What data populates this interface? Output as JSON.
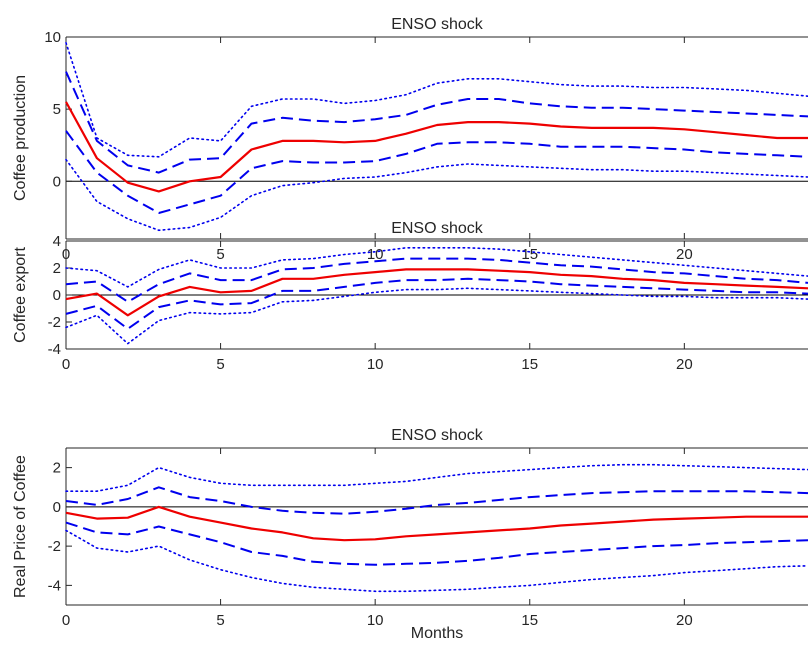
{
  "chart_data": [
    {
      "type": "line",
      "title": "ENSO shock",
      "ylabel": "Coffee production",
      "xlabel": "",
      "xlim": [
        0,
        24
      ],
      "ylim": [
        -4,
        10
      ],
      "xticks": [
        0,
        5,
        10,
        15,
        20
      ],
      "yticks": [
        0,
        5,
        10
      ],
      "grid": false,
      "zero_line": true,
      "x": [
        0,
        1,
        2,
        3,
        4,
        5,
        6,
        7,
        8,
        9,
        10,
        11,
        12,
        13,
        14,
        15,
        16,
        17,
        18,
        19,
        20,
        21,
        22,
        23,
        24
      ],
      "series": [
        {
          "role": "upper-90",
          "style": "dotted",
          "color": "#0000ee",
          "values": [
            9.6,
            3.0,
            1.8,
            1.7,
            3.0,
            2.8,
            5.2,
            5.7,
            5.7,
            5.4,
            5.6,
            6.0,
            6.8,
            7.1,
            7.1,
            6.9,
            6.7,
            6.6,
            6.6,
            6.5,
            6.5,
            6.4,
            6.3,
            6.1,
            5.9
          ]
        },
        {
          "role": "upper-68",
          "style": "dashed",
          "color": "#0000ee",
          "values": [
            7.6,
            2.8,
            1.1,
            0.6,
            1.5,
            1.6,
            4.0,
            4.4,
            4.2,
            4.1,
            4.3,
            4.6,
            5.3,
            5.7,
            5.7,
            5.4,
            5.2,
            5.1,
            5.1,
            5.0,
            4.9,
            4.8,
            4.7,
            4.6,
            4.5
          ]
        },
        {
          "role": "point-estimate",
          "style": "solid",
          "color": "#ee0000",
          "values": [
            5.5,
            1.6,
            -0.1,
            -0.7,
            0.0,
            0.3,
            2.2,
            2.8,
            2.8,
            2.7,
            2.8,
            3.3,
            3.9,
            4.1,
            4.1,
            4.0,
            3.8,
            3.7,
            3.7,
            3.7,
            3.6,
            3.4,
            3.2,
            3.0,
            3.0
          ]
        },
        {
          "role": "lower-68",
          "style": "dashed",
          "color": "#0000ee",
          "values": [
            3.5,
            0.6,
            -1.0,
            -2.2,
            -1.6,
            -1.0,
            0.9,
            1.4,
            1.3,
            1.3,
            1.4,
            1.9,
            2.6,
            2.7,
            2.7,
            2.6,
            2.4,
            2.4,
            2.4,
            2.3,
            2.2,
            2.0,
            1.9,
            1.8,
            1.7
          ]
        },
        {
          "role": "lower-90",
          "style": "dotted",
          "color": "#0000ee",
          "values": [
            1.5,
            -1.4,
            -2.6,
            -3.4,
            -3.2,
            -2.5,
            -1.0,
            -0.3,
            -0.1,
            0.2,
            0.3,
            0.6,
            1.0,
            1.2,
            1.1,
            1.0,
            0.9,
            0.8,
            0.8,
            0.7,
            0.7,
            0.6,
            0.5,
            0.4,
            0.3
          ]
        }
      ]
    },
    {
      "type": "line",
      "title": "ENSO shock",
      "ylabel": "Coffee export",
      "xlabel": "",
      "xlim": [
        0,
        24
      ],
      "ylim": [
        -4,
        4
      ],
      "xticks": [
        0,
        5,
        10,
        15,
        20
      ],
      "yticks": [
        -4,
        -2,
        0,
        2,
        4
      ],
      "grid": false,
      "zero_line": true,
      "x": [
        0,
        1,
        2,
        3,
        4,
        5,
        6,
        7,
        8,
        9,
        10,
        11,
        12,
        13,
        14,
        15,
        16,
        17,
        18,
        19,
        20,
        21,
        22,
        23,
        24
      ],
      "series": [
        {
          "role": "upper-90",
          "style": "dotted",
          "color": "#0000ee",
          "values": [
            2.0,
            1.8,
            0.6,
            1.9,
            2.6,
            2.0,
            2.0,
            2.6,
            2.7,
            3.0,
            3.2,
            3.5,
            3.5,
            3.5,
            3.4,
            3.2,
            3.0,
            2.8,
            2.6,
            2.4,
            2.2,
            2.0,
            1.8,
            1.6,
            1.4
          ]
        },
        {
          "role": "upper-68",
          "style": "dashed",
          "color": "#0000ee",
          "values": [
            0.8,
            1.0,
            -0.5,
            0.8,
            1.6,
            1.1,
            1.1,
            1.9,
            2.0,
            2.3,
            2.5,
            2.7,
            2.7,
            2.7,
            2.6,
            2.4,
            2.2,
            2.1,
            1.9,
            1.7,
            1.6,
            1.4,
            1.2,
            1.1,
            0.9
          ]
        },
        {
          "role": "point-estimate",
          "style": "solid",
          "color": "#ee0000",
          "values": [
            -0.3,
            0.1,
            -1.5,
            -0.1,
            0.6,
            0.2,
            0.3,
            1.2,
            1.2,
            1.5,
            1.7,
            1.9,
            1.9,
            1.9,
            1.8,
            1.7,
            1.5,
            1.4,
            1.2,
            1.1,
            0.9,
            0.8,
            0.7,
            0.6,
            0.5
          ]
        },
        {
          "role": "lower-68",
          "style": "dashed",
          "color": "#0000ee",
          "values": [
            -1.4,
            -0.8,
            -2.5,
            -0.9,
            -0.4,
            -0.7,
            -0.6,
            0.3,
            0.3,
            0.6,
            0.9,
            1.1,
            1.1,
            1.2,
            1.1,
            1.0,
            0.8,
            0.7,
            0.6,
            0.5,
            0.4,
            0.3,
            0.2,
            0.2,
            0.1
          ]
        },
        {
          "role": "lower-90",
          "style": "dotted",
          "color": "#0000ee",
          "values": [
            -2.4,
            -1.5,
            -3.6,
            -1.9,
            -1.3,
            -1.4,
            -1.3,
            -0.5,
            -0.4,
            -0.1,
            0.2,
            0.4,
            0.4,
            0.5,
            0.4,
            0.3,
            0.2,
            0.1,
            0.0,
            -0.1,
            -0.1,
            -0.2,
            -0.2,
            -0.2,
            -0.3
          ]
        }
      ]
    },
    {
      "type": "line",
      "title": "ENSO shock",
      "ylabel": "Real Price of Coffee",
      "xlabel": "Months",
      "xlim": [
        0,
        24
      ],
      "ylim": [
        -5,
        3
      ],
      "xticks": [
        0,
        5,
        10,
        15,
        20
      ],
      "yticks": [
        -4,
        -2,
        0,
        2
      ],
      "grid": false,
      "zero_line": true,
      "x": [
        0,
        1,
        2,
        3,
        4,
        5,
        6,
        7,
        8,
        9,
        10,
        11,
        12,
        13,
        14,
        15,
        16,
        17,
        18,
        19,
        20,
        21,
        22,
        23,
        24
      ],
      "series": [
        {
          "role": "upper-90",
          "style": "dotted",
          "color": "#0000ee",
          "values": [
            0.8,
            0.8,
            1.1,
            2.0,
            1.5,
            1.2,
            1.1,
            1.1,
            1.1,
            1.1,
            1.2,
            1.3,
            1.5,
            1.7,
            1.8,
            1.9,
            2.0,
            2.1,
            2.15,
            2.15,
            2.1,
            2.05,
            2.0,
            1.95,
            1.9
          ]
        },
        {
          "role": "upper-68",
          "style": "dashed",
          "color": "#0000ee",
          "values": [
            0.3,
            0.1,
            0.4,
            1.0,
            0.5,
            0.3,
            0.0,
            -0.2,
            -0.3,
            -0.35,
            -0.25,
            -0.1,
            0.1,
            0.2,
            0.35,
            0.5,
            0.6,
            0.7,
            0.75,
            0.8,
            0.8,
            0.8,
            0.8,
            0.75,
            0.7
          ]
        },
        {
          "role": "point-estimate",
          "style": "solid",
          "color": "#ee0000",
          "values": [
            -0.3,
            -0.6,
            -0.55,
            0.0,
            -0.5,
            -0.8,
            -1.1,
            -1.3,
            -1.6,
            -1.7,
            -1.65,
            -1.5,
            -1.4,
            -1.3,
            -1.2,
            -1.1,
            -0.95,
            -0.85,
            -0.75,
            -0.65,
            -0.6,
            -0.55,
            -0.5,
            -0.5,
            -0.5
          ]
        },
        {
          "role": "lower-68",
          "style": "dashed",
          "color": "#0000ee",
          "values": [
            -0.8,
            -1.3,
            -1.4,
            -1.0,
            -1.4,
            -1.8,
            -2.3,
            -2.5,
            -2.8,
            -2.9,
            -2.95,
            -2.9,
            -2.85,
            -2.75,
            -2.6,
            -2.4,
            -2.3,
            -2.2,
            -2.1,
            -2.0,
            -1.95,
            -1.85,
            -1.8,
            -1.75,
            -1.7
          ]
        },
        {
          "role": "lower-90",
          "style": "dotted",
          "color": "#0000ee",
          "values": [
            -1.2,
            -2.1,
            -2.3,
            -2.0,
            -2.7,
            -3.2,
            -3.6,
            -3.9,
            -4.1,
            -4.2,
            -4.3,
            -4.3,
            -4.25,
            -4.2,
            -4.1,
            -4.0,
            -3.85,
            -3.7,
            -3.6,
            -3.5,
            -3.35,
            -3.25,
            -3.15,
            -3.05,
            -3.0
          ]
        }
      ]
    }
  ]
}
